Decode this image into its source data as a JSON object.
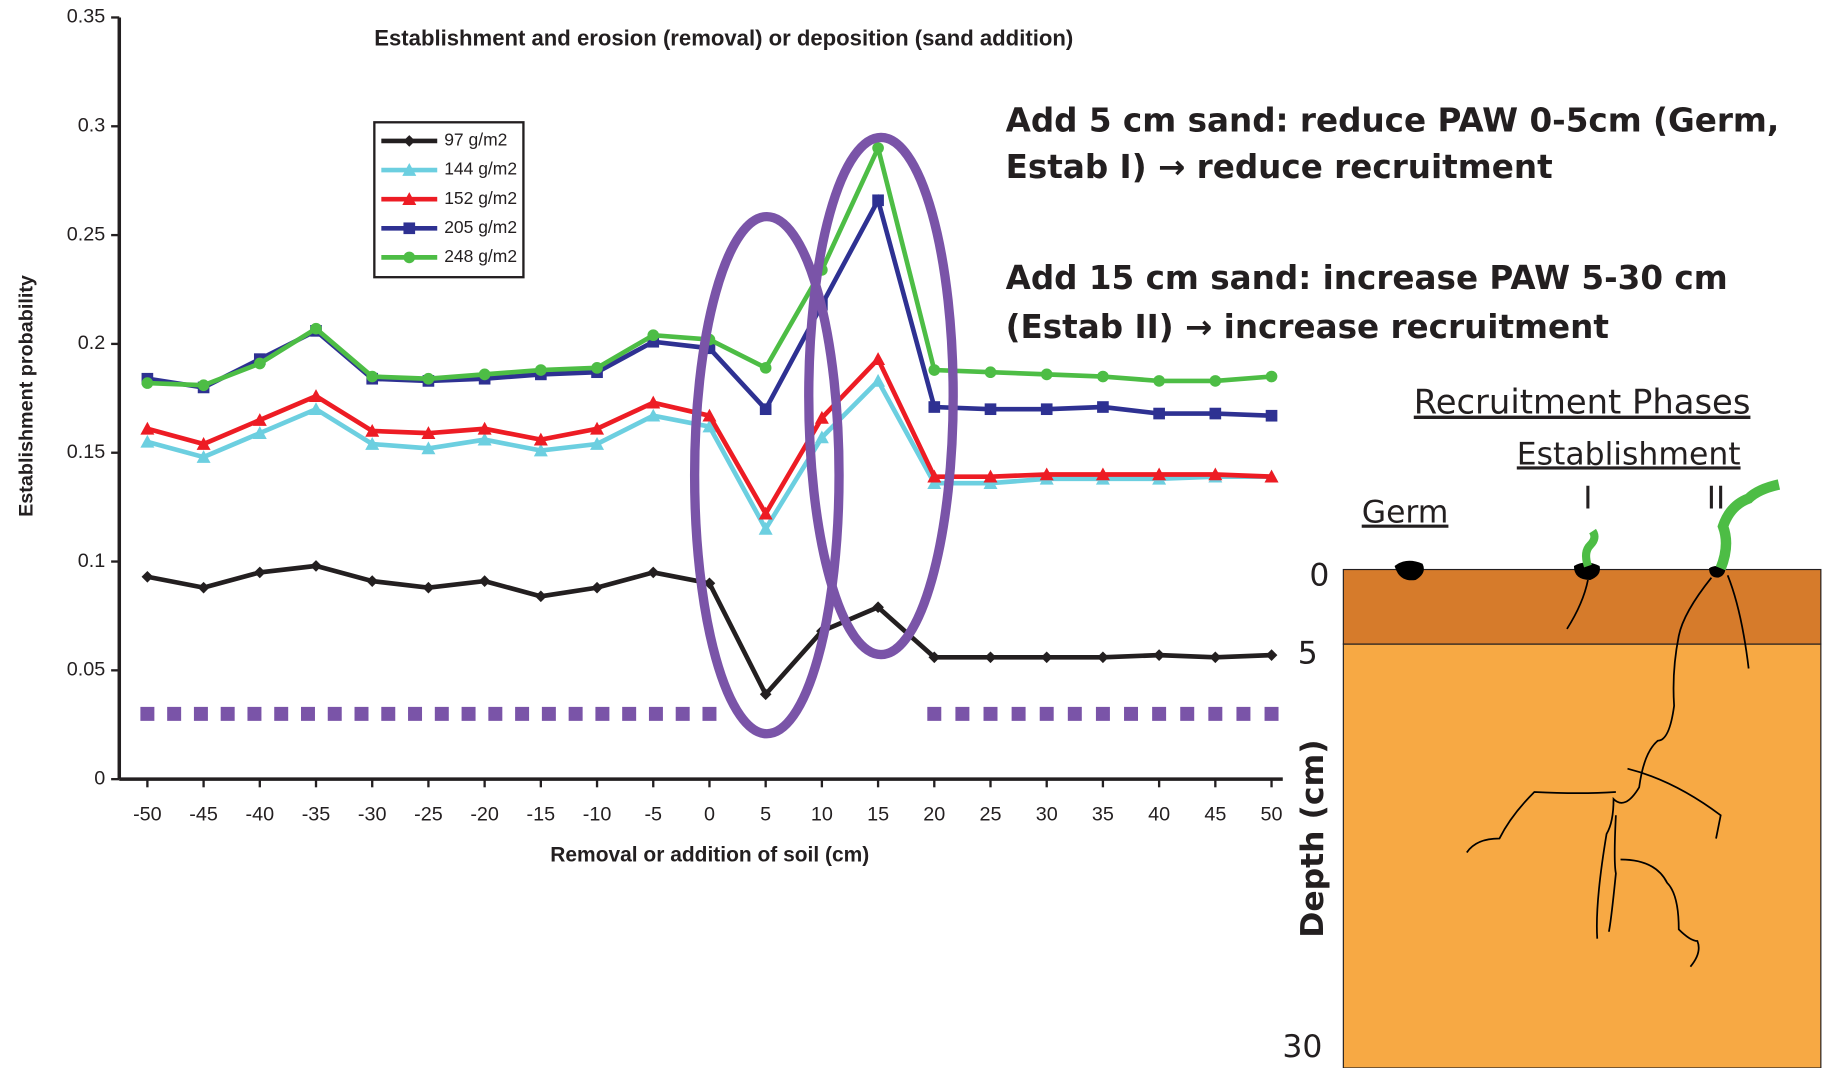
{
  "chart_data": {
    "type": "line",
    "title": "Establishment and erosion (removal) or deposition (sand addition)",
    "x_label": "Removal or addition of soil (cm)",
    "y_label": "Establishment probability",
    "x": [
      -50,
      -45,
      -40,
      -35,
      -30,
      -25,
      -20,
      -15,
      -10,
      -5,
      0,
      5,
      10,
      15,
      20,
      25,
      30,
      35,
      40,
      45,
      50
    ],
    "xticks": [
      -50,
      -45,
      -40,
      -35,
      -30,
      -25,
      -20,
      -15,
      -10,
      -5,
      0,
      5,
      10,
      15,
      20,
      25,
      30,
      35,
      40,
      45,
      50
    ],
    "xlim": [
      -52.5,
      51
    ],
    "ylim": [
      0,
      0.35
    ],
    "yticks": [
      0,
      0.05,
      0.1,
      0.15,
      0.2,
      0.25,
      0.3,
      0.35
    ],
    "series": [
      {
        "name": "97 g/m2",
        "color": "#231f20",
        "marker": "diamond",
        "values": [
          0.093,
          0.088,
          0.095,
          0.098,
          0.091,
          0.088,
          0.091,
          0.084,
          0.088,
          0.095,
          0.09,
          0.039,
          0.068,
          0.079,
          0.056,
          0.056,
          0.056,
          0.056,
          0.057,
          0.056,
          0.057
        ]
      },
      {
        "name": "144 g/m2",
        "color": "#6ccfe0",
        "marker": "triangle",
        "values": [
          0.155,
          0.148,
          0.159,
          0.17,
          0.154,
          0.152,
          0.156,
          0.151,
          0.154,
          0.167,
          0.162,
          0.115,
          0.157,
          0.183,
          0.136,
          0.136,
          0.138,
          0.138,
          0.138,
          0.139,
          0.139
        ]
      },
      {
        "name": "152 g/m2",
        "color": "#ed1c24",
        "marker": "triangle",
        "values": [
          0.161,
          0.154,
          0.165,
          0.176,
          0.16,
          0.159,
          0.161,
          0.156,
          0.161,
          0.173,
          0.167,
          0.122,
          0.166,
          0.193,
          0.139,
          0.139,
          0.14,
          0.14,
          0.14,
          0.14,
          0.139
        ]
      },
      {
        "name": "205 g/m2",
        "color": "#2e3192",
        "marker": "square",
        "values": [
          0.184,
          0.18,
          0.193,
          0.206,
          0.184,
          0.183,
          0.184,
          0.186,
          0.187,
          0.201,
          0.198,
          0.17,
          0.218,
          0.266,
          0.171,
          0.17,
          0.17,
          0.171,
          0.168,
          0.168,
          0.167
        ]
      },
      {
        "name": "248 g/m2",
        "color": "#4dbd45",
        "marker": "circle",
        "values": [
          0.182,
          0.181,
          0.191,
          0.207,
          0.185,
          0.184,
          0.186,
          0.188,
          0.189,
          0.204,
          0.202,
          0.189,
          0.234,
          0.29,
          0.188,
          0.187,
          0.186,
          0.185,
          0.183,
          0.183,
          0.185
        ]
      }
    ],
    "dotted_line": {
      "value": 0.03,
      "color": "#7a54a8",
      "segments": [
        [
          -50,
          0
        ],
        [
          20,
          50
        ]
      ]
    },
    "annotations": [
      "Add 5 cm sand: reduce PAW 0-5cm (Germ,",
      "Estab I) → reduce recruitment",
      "Add 15 cm sand: increase PAW 5-30 cm",
      "(Estab II) → increase recruitment"
    ]
  },
  "diagram": {
    "title": "Recruitment Phases",
    "subtitle": "Establishment",
    "germ": "Germ",
    "phase_1": "I",
    "phase_2": "II",
    "depth_label": "Depth (cm)",
    "depth_ticks": [
      "0",
      "5",
      "30"
    ]
  }
}
